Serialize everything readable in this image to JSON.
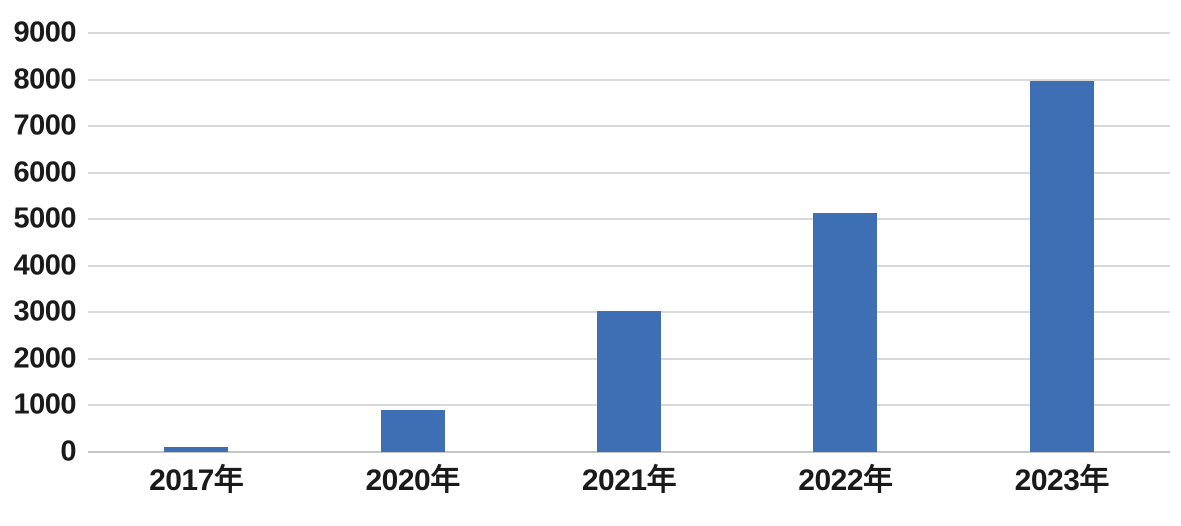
{
  "chart_data": {
    "type": "bar",
    "title": "",
    "xlabel": "",
    "ylabel": "",
    "categories": [
      "2017年",
      "2020年",
      "2021年",
      "2022年",
      "2023年"
    ],
    "values": [
      100,
      900,
      3030,
      5140,
      7970
    ],
    "ylim": [
      0,
      9000
    ],
    "ytick_interval": 1000,
    "yticks": [
      "0",
      "1000",
      "2000",
      "3000",
      "4000",
      "5000",
      "6000",
      "7000",
      "8000",
      "9000"
    ],
    "grid": "horizontal",
    "legend": "none",
    "colors": {
      "bar": "#3E6FB4",
      "gridline": "#D9D9D9",
      "axis_line": "#C6C6C6",
      "label": "#1A1A1A"
    }
  }
}
